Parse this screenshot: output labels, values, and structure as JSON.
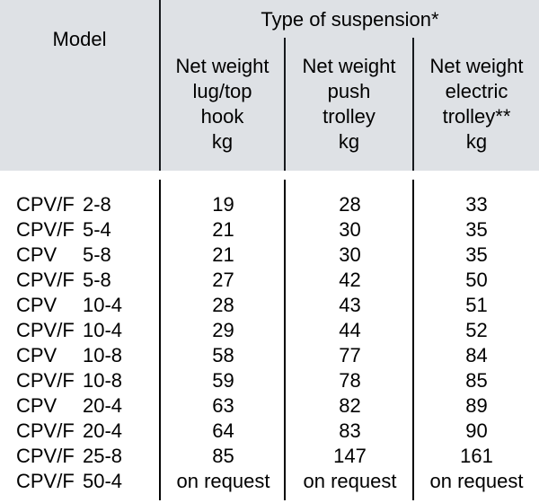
{
  "colors": {
    "page_bg": "#ffffff",
    "header_bg": "#dee1e5",
    "line": "#16191d",
    "text": "#000000"
  },
  "table": {
    "header": {
      "model_label": "Model",
      "suspension_title": "Type of suspension*",
      "columns": [
        {
          "lines": [
            "Net weight",
            "lug/top",
            "hook",
            "kg"
          ]
        },
        {
          "lines": [
            "Net weight",
            "push",
            "trolley",
            "kg"
          ]
        },
        {
          "lines": [
            "Net weight",
            "electric",
            "trolley**",
            "kg"
          ]
        }
      ]
    },
    "rows": [
      {
        "model_prefix": "CPV/F",
        "model_size": "2-8",
        "lug_top_hook": "19",
        "push_trolley": "28",
        "electric_trolley": "33"
      },
      {
        "model_prefix": "CPV/F",
        "model_size": "5-4",
        "lug_top_hook": "21",
        "push_trolley": "30",
        "electric_trolley": "35"
      },
      {
        "model_prefix": "CPV",
        "model_size": "5-8",
        "lug_top_hook": "21",
        "push_trolley": "30",
        "electric_trolley": "35"
      },
      {
        "model_prefix": "CPV/F",
        "model_size": "5-8",
        "lug_top_hook": "27",
        "push_trolley": "42",
        "electric_trolley": "50"
      },
      {
        "model_prefix": "CPV",
        "model_size": "10-4",
        "lug_top_hook": "28",
        "push_trolley": "43",
        "electric_trolley": "51"
      },
      {
        "model_prefix": "CPV/F",
        "model_size": "10-4",
        "lug_top_hook": "29",
        "push_trolley": "44",
        "electric_trolley": "52"
      },
      {
        "model_prefix": "CPV",
        "model_size": "10-8",
        "lug_top_hook": "58",
        "push_trolley": "77",
        "electric_trolley": "84"
      },
      {
        "model_prefix": "CPV/F",
        "model_size": "10-8",
        "lug_top_hook": "59",
        "push_trolley": "78",
        "electric_trolley": "85"
      },
      {
        "model_prefix": "CPV",
        "model_size": "20-4",
        "lug_top_hook": "63",
        "push_trolley": "82",
        "electric_trolley": "89"
      },
      {
        "model_prefix": "CPV/F",
        "model_size": "20-4",
        "lug_top_hook": "64",
        "push_trolley": "83",
        "electric_trolley": "90"
      },
      {
        "model_prefix": "CPV/F",
        "model_size": "25-8",
        "lug_top_hook": "85",
        "push_trolley": "147",
        "electric_trolley": "161"
      },
      {
        "model_prefix": "CPV/F",
        "model_size": "50-4",
        "lug_top_hook": "on request",
        "push_trolley": "on request",
        "electric_trolley": "on request"
      }
    ]
  }
}
